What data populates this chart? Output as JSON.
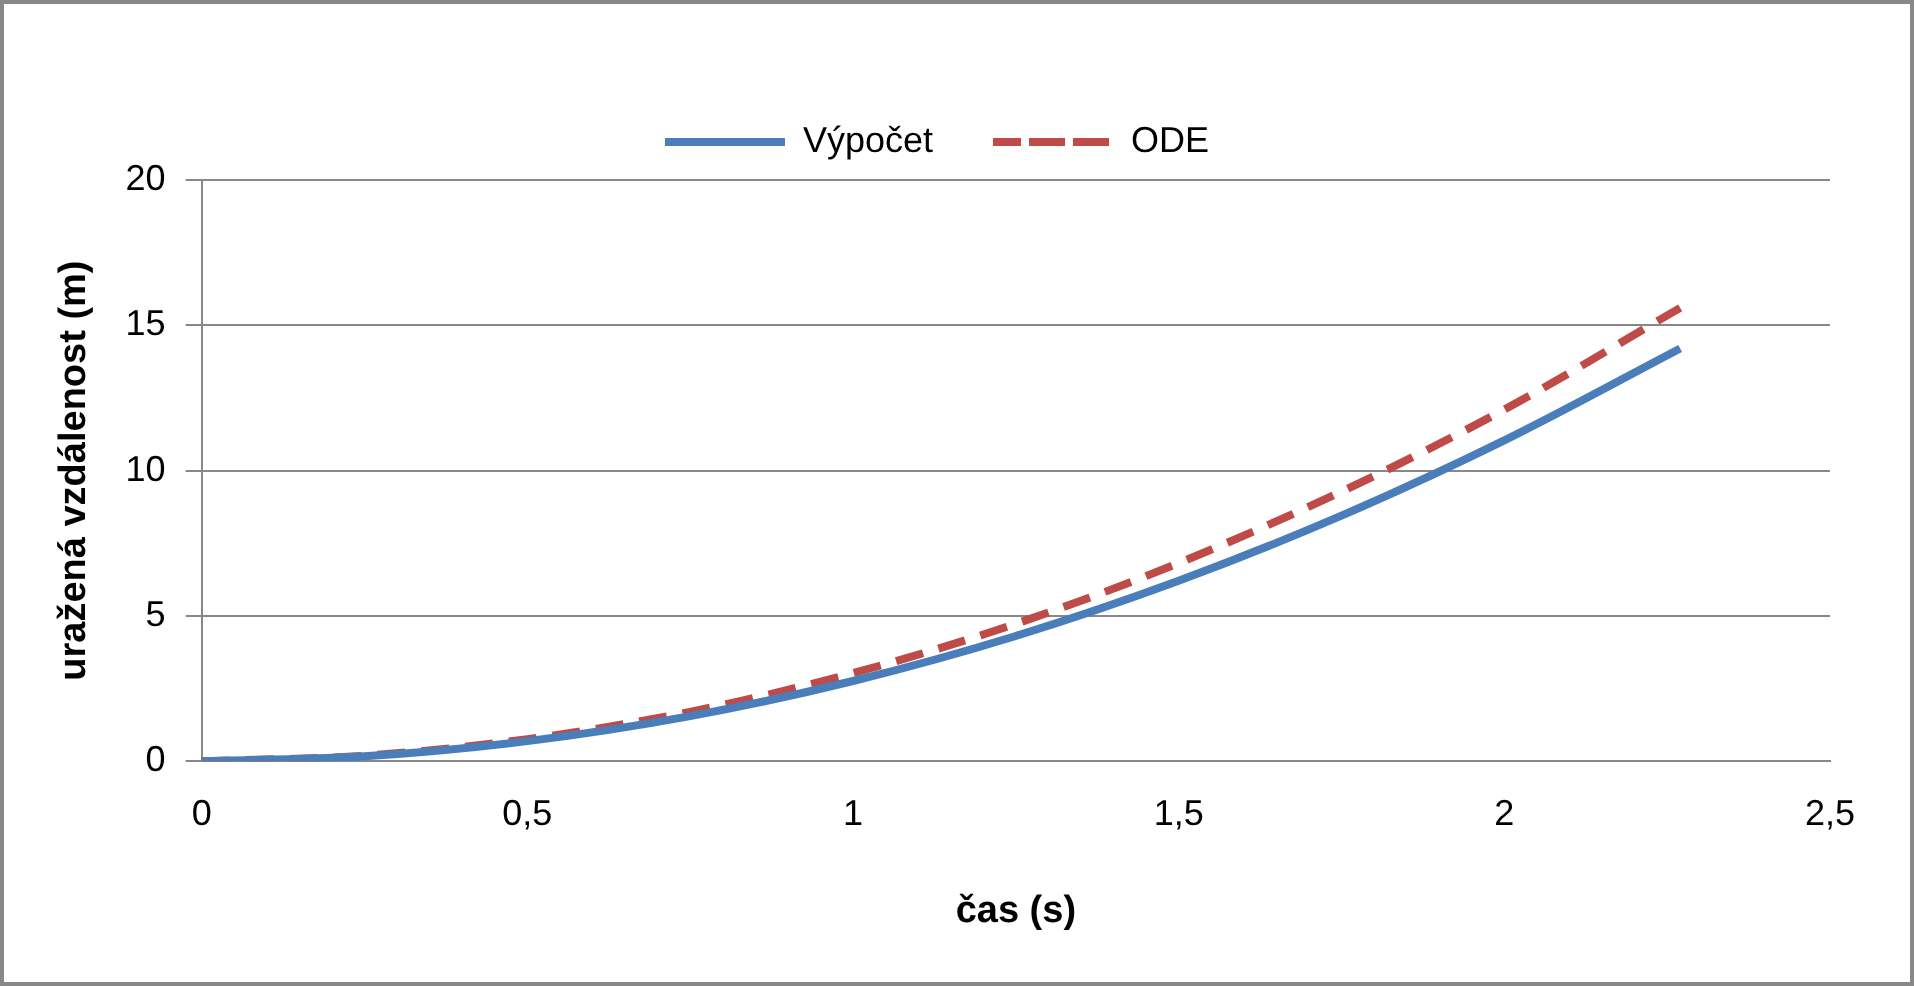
{
  "chart_data": {
    "type": "line",
    "xlabel": "čas (s)",
    "ylabel": "uražená vzdálenost (m)",
    "xlim": [
      0,
      2.5
    ],
    "xticks": [
      0,
      {
        "value": 0.5,
        "label": "0,5"
      },
      1,
      {
        "value": 1.5,
        "label": "1,5"
      },
      2,
      {
        "value": 2.5,
        "label": "2,5"
      }
    ],
    "ylim": [
      0,
      20
    ],
    "yticks": [
      0,
      5,
      10,
      15,
      20
    ],
    "grid": "y",
    "legend": "top",
    "marker": "none",
    "series": [
      {
        "name": "Výpočet",
        "color": "#4a7ebb",
        "line_style": "solid",
        "x": [
          0,
          0.25,
          0.5,
          0.75,
          1,
          1.25,
          1.5,
          1.75,
          2,
          2.27
        ],
        "values": [
          0,
          0.17,
          0.69,
          1.55,
          2.76,
          4.31,
          6.21,
          8.45,
          11.04,
          14.2
        ]
      },
      {
        "name": "ODE",
        "color": "#be4b48",
        "line_style": "dashed",
        "x": [
          0,
          0.25,
          0.5,
          0.75,
          1,
          1.25,
          1.5,
          1.75,
          2,
          2.27
        ],
        "values": [
          0,
          0.19,
          0.76,
          1.7,
          3.03,
          4.73,
          6.82,
          9.28,
          12.1,
          15.6
        ]
      }
    ]
  }
}
